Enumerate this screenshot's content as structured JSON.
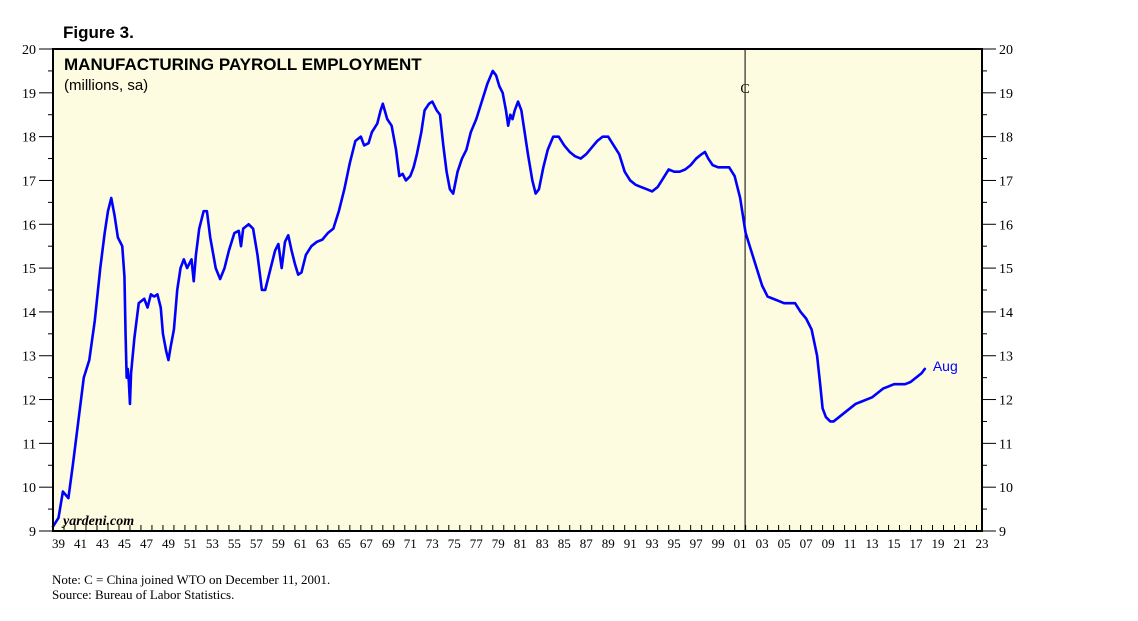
{
  "figure_label": "Figure 3.",
  "watermark": "yardeni.com",
  "notes": [
    "Note: C = China joined WTO on December 11, 2001.",
    "Source: Bureau of Labor Statistics."
  ],
  "colors": {
    "background": "#fdfbe0",
    "line": "#0000ff",
    "axis": "#000000"
  },
  "chart_data": {
    "type": "line",
    "title": "MANUFACTURING PAYROLL EMPLOYMENT",
    "subtitle": "(millions, sa)",
    "xlabel": "",
    "ylabel": "",
    "xlim": [
      1939,
      2023.5
    ],
    "ylim": [
      9,
      20
    ],
    "y_ticks": [
      9,
      10,
      11,
      12,
      13,
      14,
      15,
      16,
      17,
      18,
      19,
      20
    ],
    "x_tick_labels": [
      "39",
      "41",
      "43",
      "45",
      "47",
      "49",
      "51",
      "53",
      "55",
      "57",
      "59",
      "61",
      "63",
      "65",
      "67",
      "69",
      "71",
      "73",
      "75",
      "77",
      "79",
      "81",
      "83",
      "85",
      "87",
      "89",
      "91",
      "93",
      "95",
      "97",
      "99",
      "01",
      "03",
      "05",
      "07",
      "09",
      "11",
      "13",
      "15",
      "17",
      "19",
      "21",
      "23"
    ],
    "grid": false,
    "annotations": [
      {
        "x": 2001.95,
        "label": "C",
        "type": "vertical-line"
      }
    ],
    "end_label": "Aug",
    "series": [
      {
        "values": [
          [
            1939.0,
            9.1
          ],
          [
            1939.5,
            9.3
          ],
          [
            1939.9,
            9.9
          ],
          [
            1940.4,
            9.75
          ],
          [
            1940.8,
            10.5
          ],
          [
            1941.3,
            11.5
          ],
          [
            1941.8,
            12.5
          ],
          [
            1942.3,
            12.9
          ],
          [
            1942.8,
            13.8
          ],
          [
            1943.3,
            15.0
          ],
          [
            1943.7,
            15.8
          ],
          [
            1944.0,
            16.3
          ],
          [
            1944.3,
            16.6
          ],
          [
            1944.6,
            16.2
          ],
          [
            1944.9,
            15.7
          ],
          [
            1945.1,
            15.6
          ],
          [
            1945.3,
            15.5
          ],
          [
            1945.5,
            14.8
          ],
          [
            1945.6,
            13.5
          ],
          [
            1945.7,
            12.5
          ],
          [
            1945.8,
            12.7
          ],
          [
            1945.9,
            12.4
          ],
          [
            1946.0,
            11.9
          ],
          [
            1946.1,
            12.6
          ],
          [
            1946.4,
            13.4
          ],
          [
            1946.8,
            14.2
          ],
          [
            1947.3,
            14.3
          ],
          [
            1947.6,
            14.1
          ],
          [
            1947.9,
            14.4
          ],
          [
            1948.2,
            14.35
          ],
          [
            1948.5,
            14.4
          ],
          [
            1948.8,
            14.1
          ],
          [
            1949.0,
            13.5
          ],
          [
            1949.3,
            13.1
          ],
          [
            1949.5,
            12.9
          ],
          [
            1949.7,
            13.2
          ],
          [
            1950.0,
            13.6
          ],
          [
            1950.3,
            14.5
          ],
          [
            1950.6,
            15.0
          ],
          [
            1950.9,
            15.2
          ],
          [
            1951.2,
            15.0
          ],
          [
            1951.6,
            15.2
          ],
          [
            1951.8,
            14.7
          ],
          [
            1952.0,
            15.3
          ],
          [
            1952.3,
            15.9
          ],
          [
            1952.7,
            16.3
          ],
          [
            1953.0,
            16.3
          ],
          [
            1953.3,
            15.7
          ],
          [
            1953.8,
            15.0
          ],
          [
            1954.2,
            14.75
          ],
          [
            1954.6,
            15.0
          ],
          [
            1955.0,
            15.4
          ],
          [
            1955.5,
            15.8
          ],
          [
            1955.9,
            15.85
          ],
          [
            1956.1,
            15.5
          ],
          [
            1956.3,
            15.9
          ],
          [
            1956.8,
            16.0
          ],
          [
            1957.2,
            15.9
          ],
          [
            1957.6,
            15.3
          ],
          [
            1958.0,
            14.5
          ],
          [
            1958.3,
            14.5
          ],
          [
            1958.8,
            15.0
          ],
          [
            1959.2,
            15.4
          ],
          [
            1959.5,
            15.55
          ],
          [
            1959.8,
            15.0
          ],
          [
            1960.1,
            15.6
          ],
          [
            1960.4,
            15.75
          ],
          [
            1960.7,
            15.4
          ],
          [
            1961.0,
            15.1
          ],
          [
            1961.3,
            14.85
          ],
          [
            1961.6,
            14.9
          ],
          [
            1962.0,
            15.3
          ],
          [
            1962.5,
            15.5
          ],
          [
            1963.0,
            15.6
          ],
          [
            1963.5,
            15.65
          ],
          [
            1964.0,
            15.8
          ],
          [
            1964.5,
            15.9
          ],
          [
            1965.0,
            16.3
          ],
          [
            1965.5,
            16.8
          ],
          [
            1966.0,
            17.4
          ],
          [
            1966.5,
            17.9
          ],
          [
            1967.0,
            18.0
          ],
          [
            1967.3,
            17.8
          ],
          [
            1967.7,
            17.85
          ],
          [
            1968.0,
            18.1
          ],
          [
            1968.5,
            18.3
          ],
          [
            1968.8,
            18.6
          ],
          [
            1969.0,
            18.75
          ],
          [
            1969.4,
            18.4
          ],
          [
            1969.8,
            18.25
          ],
          [
            1970.2,
            17.7
          ],
          [
            1970.5,
            17.1
          ],
          [
            1970.8,
            17.15
          ],
          [
            1971.1,
            17.0
          ],
          [
            1971.5,
            17.1
          ],
          [
            1971.8,
            17.3
          ],
          [
            1972.1,
            17.6
          ],
          [
            1972.5,
            18.1
          ],
          [
            1972.8,
            18.6
          ],
          [
            1973.2,
            18.75
          ],
          [
            1973.5,
            18.8
          ],
          [
            1973.9,
            18.6
          ],
          [
            1974.2,
            18.5
          ],
          [
            1974.5,
            17.8
          ],
          [
            1974.8,
            17.2
          ],
          [
            1975.1,
            16.8
          ],
          [
            1975.4,
            16.7
          ],
          [
            1975.8,
            17.2
          ],
          [
            1976.2,
            17.5
          ],
          [
            1976.6,
            17.7
          ],
          [
            1977.0,
            18.1
          ],
          [
            1977.5,
            18.4
          ],
          [
            1978.0,
            18.8
          ],
          [
            1978.5,
            19.2
          ],
          [
            1979.0,
            19.5
          ],
          [
            1979.3,
            19.4
          ],
          [
            1979.6,
            19.15
          ],
          [
            1979.9,
            19.0
          ],
          [
            1980.2,
            18.6
          ],
          [
            1980.4,
            18.25
          ],
          [
            1980.6,
            18.5
          ],
          [
            1980.8,
            18.4
          ],
          [
            1981.0,
            18.6
          ],
          [
            1981.3,
            18.8
          ],
          [
            1981.6,
            18.6
          ],
          [
            1981.9,
            18.1
          ],
          [
            1982.2,
            17.6
          ],
          [
            1982.6,
            17.0
          ],
          [
            1982.9,
            16.7
          ],
          [
            1983.2,
            16.8
          ],
          [
            1983.6,
            17.3
          ],
          [
            1984.0,
            17.7
          ],
          [
            1984.5,
            18.0
          ],
          [
            1985.0,
            18.0
          ],
          [
            1985.5,
            17.8
          ],
          [
            1986.0,
            17.65
          ],
          [
            1986.5,
            17.55
          ],
          [
            1987.0,
            17.5
          ],
          [
            1987.5,
            17.6
          ],
          [
            1988.0,
            17.75
          ],
          [
            1988.5,
            17.9
          ],
          [
            1989.0,
            18.0
          ],
          [
            1989.5,
            18.0
          ],
          [
            1990.0,
            17.8
          ],
          [
            1990.5,
            17.6
          ],
          [
            1991.0,
            17.2
          ],
          [
            1991.5,
            17.0
          ],
          [
            1992.0,
            16.9
          ],
          [
            1992.5,
            16.85
          ],
          [
            1993.0,
            16.8
          ],
          [
            1993.5,
            16.75
          ],
          [
            1994.0,
            16.85
          ],
          [
            1994.5,
            17.05
          ],
          [
            1995.0,
            17.25
          ],
          [
            1995.5,
            17.2
          ],
          [
            1996.0,
            17.2
          ],
          [
            1996.5,
            17.25
          ],
          [
            1997.0,
            17.35
          ],
          [
            1997.5,
            17.5
          ],
          [
            1998.0,
            17.6
          ],
          [
            1998.3,
            17.65
          ],
          [
            1998.6,
            17.5
          ],
          [
            1999.0,
            17.35
          ],
          [
            1999.5,
            17.3
          ],
          [
            2000.0,
            17.3
          ],
          [
            2000.5,
            17.3
          ],
          [
            2001.0,
            17.1
          ],
          [
            2001.5,
            16.6
          ],
          [
            2002.0,
            15.8
          ],
          [
            2002.5,
            15.4
          ],
          [
            2003.0,
            15.0
          ],
          [
            2003.5,
            14.6
          ],
          [
            2004.0,
            14.35
          ],
          [
            2004.5,
            14.3
          ],
          [
            2005.0,
            14.25
          ],
          [
            2005.5,
            14.2
          ],
          [
            2006.0,
            14.2
          ],
          [
            2006.5,
            14.2
          ],
          [
            2007.0,
            14.0
          ],
          [
            2007.5,
            13.85
          ],
          [
            2008.0,
            13.6
          ],
          [
            2008.5,
            13.0
          ],
          [
            2008.8,
            12.3
          ],
          [
            2009.0,
            11.8
          ],
          [
            2009.3,
            11.6
          ],
          [
            2009.7,
            11.5
          ],
          [
            2010.0,
            11.5
          ],
          [
            2010.5,
            11.6
          ],
          [
            2011.0,
            11.7
          ],
          [
            2011.5,
            11.8
          ],
          [
            2012.0,
            11.9
          ],
          [
            2012.5,
            11.95
          ],
          [
            2013.0,
            12.0
          ],
          [
            2013.5,
            12.05
          ],
          [
            2014.0,
            12.15
          ],
          [
            2014.5,
            12.25
          ],
          [
            2015.0,
            12.3
          ],
          [
            2015.5,
            12.35
          ],
          [
            2016.0,
            12.35
          ],
          [
            2016.5,
            12.35
          ],
          [
            2017.0,
            12.4
          ],
          [
            2017.5,
            12.5
          ],
          [
            2018.0,
            12.6
          ],
          [
            2018.3,
            12.7
          ]
        ]
      }
    ]
  }
}
